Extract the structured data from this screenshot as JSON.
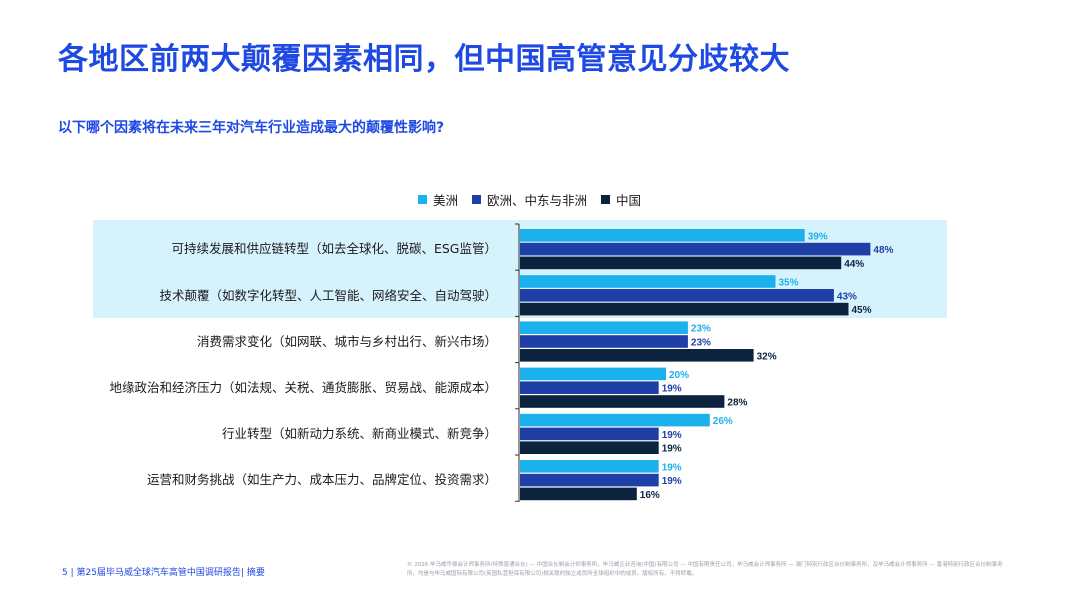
{
  "page": {
    "title": "各地区前两大颠覆因素相同，但中国高管意见分歧较大",
    "subtitle": "以下哪个因素将在未来三年对汽车行业造成最大的颠覆性影响?"
  },
  "chart_data": {
    "type": "bar",
    "orientation": "horizontal",
    "categories": [
      "可持续发展和供应链转型（如去全球化、脱碳、ESG监管）",
      "技术颠覆（如数字化转型、人工智能、网络安全、自动驾驶）",
      "消费需求变化（如网联、城市与乡村出行、新兴市场）",
      "地缘政治和经济压力（如法规、关税、通货膨胀、贸易战、能源成本）",
      "行业转型（如新动力系统、新商业模式、新竞争）",
      "运营和财务挑战（如生产力、成本压力、品牌定位、投资需求）"
    ],
    "series": [
      {
        "name": "美洲",
        "color": "#1ab1ec",
        "values": [
          39,
          35,
          23,
          20,
          26,
          19
        ]
      },
      {
        "name": "欧洲、中东与非洲",
        "color": "#1e3fa6",
        "values": [
          48,
          43,
          23,
          19,
          19,
          19
        ]
      },
      {
        "name": "中国",
        "color": "#0c233f",
        "values": [
          44,
          45,
          32,
          28,
          19,
          16
        ]
      }
    ],
    "value_suffix": "%",
    "highlighted_categories": [
      0,
      1
    ],
    "highlight_color": "#d6f2fd",
    "legend_position": "top",
    "grid": false
  },
  "footer": {
    "page_info": "5 | 第25届毕马威全球汽车高管中国调研报告| 摘要",
    "copyright": "© 2026 毕马威华振会计师事务所(特殊普通合伙) — 中国合伙制会计师事务所，毕马威企业咨询(中国)有限公司 — 中国有限责任公司，毕马威会计师事务所 — 澳门特别行政区合伙制事务所，及毕马威会计师事务所 — 香港特别行政区合伙制事务所，均是与毕马威国际有限公司(英国私营担保有限公司)相关联的独立成员所全球组织中的成员。版权所有，不得转载。"
  }
}
